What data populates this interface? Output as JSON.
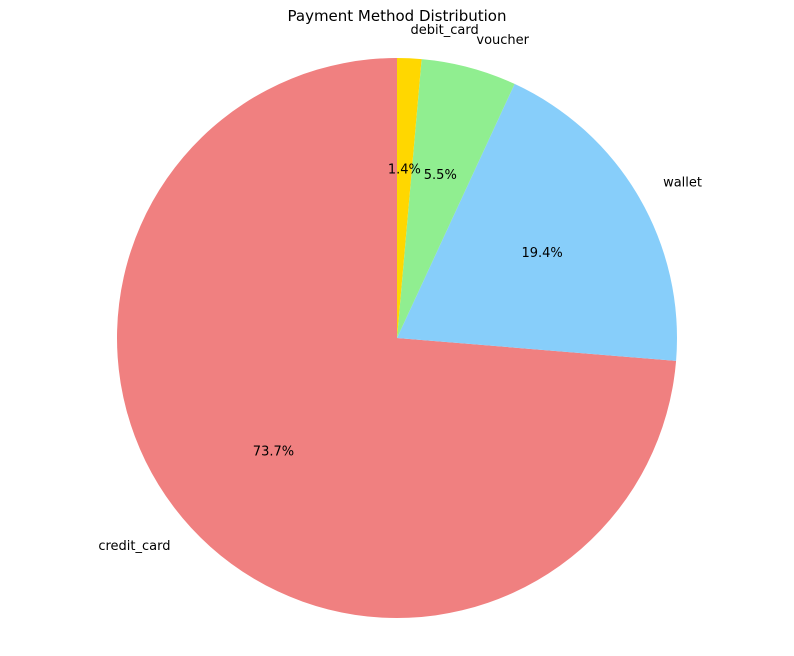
{
  "chart_data": {
    "type": "pie",
    "title": "Payment Method Distribution",
    "start_angle": 90,
    "direction": "counterclockwise",
    "slices": [
      {
        "label": "credit_card",
        "value": 73.7,
        "pct_label": "73.7%",
        "color": "#F08080"
      },
      {
        "label": "wallet",
        "value": 19.4,
        "pct_label": "19.4%",
        "color": "#87CEFA"
      },
      {
        "label": "voucher",
        "value": 5.5,
        "pct_label": "5.5%",
        "color": "#90EE90"
      },
      {
        "label": "debit_card",
        "value": 1.4,
        "pct_label": "1.4%",
        "color": "#FFD700"
      }
    ]
  }
}
